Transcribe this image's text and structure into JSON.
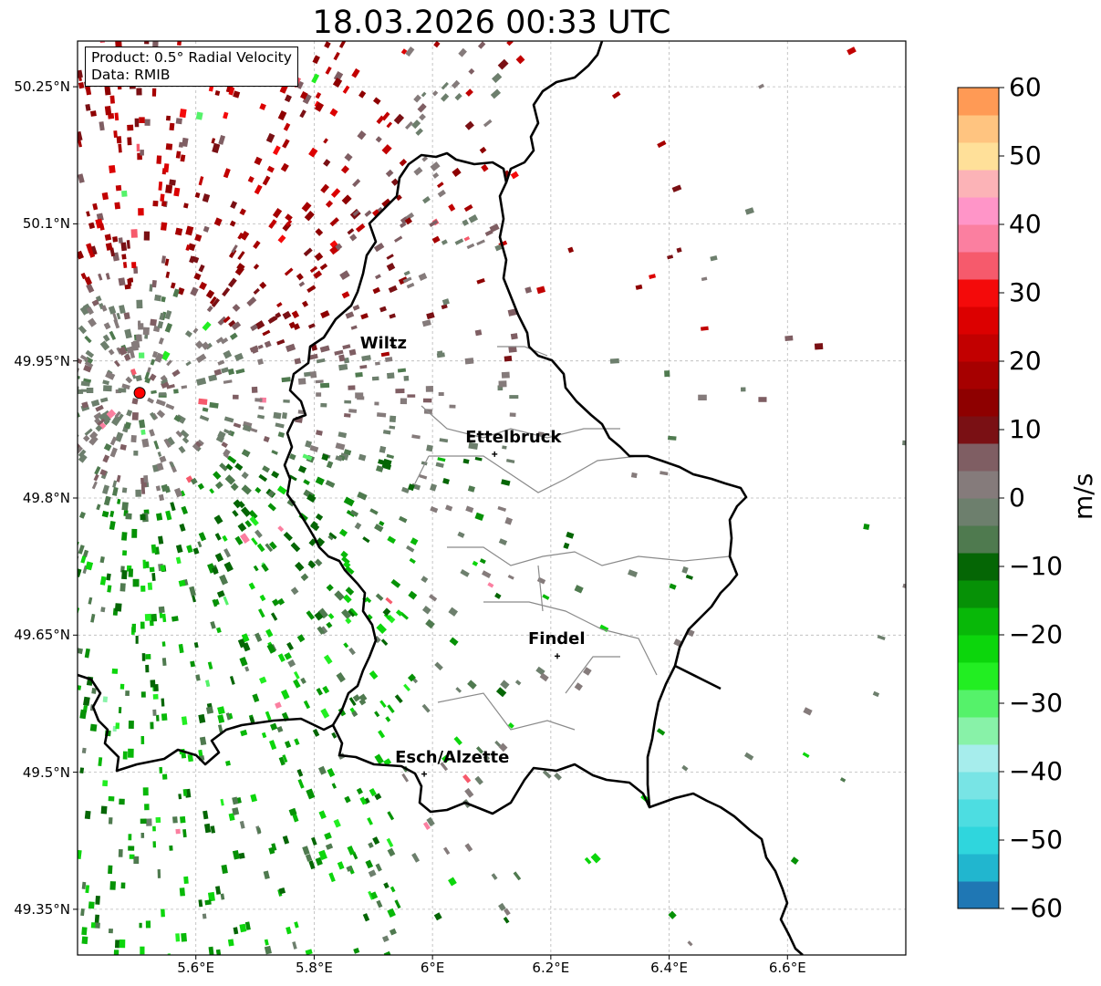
{
  "title": "18.03.2026 00:33 UTC",
  "info_box": {
    "product": "Product: 0.5° Radial Velocity",
    "source": "Data: RMIB"
  },
  "map": {
    "lat_range": [
      49.3,
      50.3
    ],
    "lon_range": [
      5.4,
      6.8
    ],
    "lat_labels": [
      "50.25°N",
      "50.1°N",
      "49.95°N",
      "49.8°N",
      "49.65°N",
      "49.5°N",
      "49.35°N"
    ],
    "lat_values": [
      50.25,
      50.1,
      49.95,
      49.8,
      49.65,
      49.5,
      49.35
    ],
    "lon_labels": [
      "5.6°E",
      "5.8°E",
      "6°E",
      "6.2°E",
      "6.4°E",
      "6.6°E"
    ],
    "lon_values": [
      5.6,
      5.8,
      6.0,
      6.2,
      6.4,
      6.6
    ],
    "radar_site": {
      "lat": 49.915,
      "lon": 5.505,
      "color": "#ff0000"
    },
    "cities": [
      {
        "name": "Wiltz",
        "lat": 49.967,
        "lon": 5.933
      },
      {
        "name": "Ettelbruck",
        "lat": 49.848,
        "lon": 6.105
      },
      {
        "name": "Findel",
        "lat": 49.627,
        "lon": 6.211
      },
      {
        "name": "Esch/Alzette",
        "lat": 49.498,
        "lon": 5.986
      }
    ]
  },
  "colorbar": {
    "label": "m/s",
    "min": -60,
    "max": 60,
    "ticks": [
      "60",
      "50",
      "40",
      "30",
      "20",
      "10",
      "0",
      "−10",
      "−20",
      "−30",
      "−40",
      "−50",
      "−60"
    ],
    "tick_values": [
      60,
      50,
      40,
      30,
      20,
      10,
      0,
      -10,
      -20,
      -30,
      -40,
      -50,
      -60
    ],
    "stops": [
      {
        "from": -60,
        "to": -56,
        "color": "#1f77b4"
      },
      {
        "from": -56,
        "to": -52,
        "color": "#21b6cf"
      },
      {
        "from": -52,
        "to": -48,
        "color": "#2fd6dd"
      },
      {
        "from": -48,
        "to": -44,
        "color": "#4ddde1"
      },
      {
        "from": -44,
        "to": -40,
        "color": "#78e4e5"
      },
      {
        "from": -40,
        "to": -36,
        "color": "#a6edec"
      },
      {
        "from": -36,
        "to": -32,
        "color": "#88f2a8"
      },
      {
        "from": -32,
        "to": -28,
        "color": "#55f26a"
      },
      {
        "from": -28,
        "to": -24,
        "color": "#22ee22"
      },
      {
        "from": -24,
        "to": -20,
        "color": "#0cd60c"
      },
      {
        "from": -20,
        "to": -16,
        "color": "#08b808"
      },
      {
        "from": -16,
        "to": -12,
        "color": "#069106"
      },
      {
        "from": -12,
        "to": -8,
        "color": "#056605"
      },
      {
        "from": -8,
        "to": -4,
        "color": "#4f7a4f"
      },
      {
        "from": -4,
        "to": 0,
        "color": "#6d7f6d"
      },
      {
        "from": 0,
        "to": 4,
        "color": "#857b7b"
      },
      {
        "from": 4,
        "to": 8,
        "color": "#7f5e63"
      },
      {
        "from": 8,
        "to": 12,
        "color": "#7a1014"
      },
      {
        "from": 12,
        "to": 16,
        "color": "#8e0000"
      },
      {
        "from": 16,
        "to": 20,
        "color": "#a60000"
      },
      {
        "from": 20,
        "to": 24,
        "color": "#c20000"
      },
      {
        "from": 24,
        "to": 28,
        "color": "#dc0000"
      },
      {
        "from": 28,
        "to": 32,
        "color": "#f40a0a"
      },
      {
        "from": 32,
        "to": 36,
        "color": "#f65a6c"
      },
      {
        "from": 36,
        "to": 40,
        "color": "#fb7fa0"
      },
      {
        "from": 40,
        "to": 44,
        "color": "#ff95c8"
      },
      {
        "from": 44,
        "to": 48,
        "color": "#fcb3b7"
      },
      {
        "from": 48,
        "to": 52,
        "color": "#ffe099"
      },
      {
        "from": 52,
        "to": 56,
        "color": "#ffc480"
      },
      {
        "from": 56,
        "to": 60,
        "color": "#ff9a55"
      }
    ]
  }
}
